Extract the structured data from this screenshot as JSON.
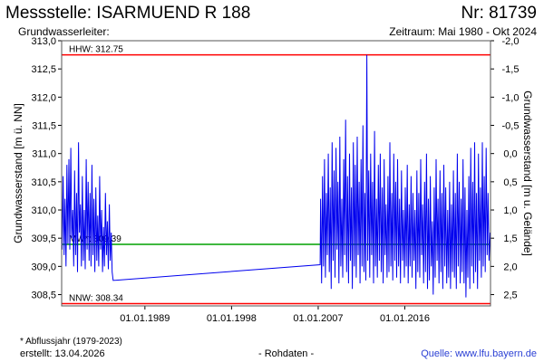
{
  "header": {
    "title": "Messstelle: ISARMUEND R 188",
    "number": "Nr: 81739",
    "aquifer": "Grundwasserleiter:",
    "period": "Zeitraum: Mai 1980 - Okt 2024"
  },
  "footer": {
    "note": "* Abflussjahr (1979-2023)",
    "created": "erstellt:  13.04.2026",
    "data_type": "- Rohdaten -",
    "source": "Quelle:  www.lfu.bayern.de"
  },
  "colors": {
    "series": "#0000ee",
    "extreme": "#ff0000",
    "mean": "#00a000",
    "frame": "#555555"
  },
  "chart_data": {
    "type": "line",
    "ylabel": "Grundwasserstand [m ü. NN]",
    "y2label": "Grundwasserstand [m u. Gelände]",
    "ylim": [
      308.3,
      313.0
    ],
    "yticks": [
      308.5,
      309.0,
      309.5,
      310.0,
      310.5,
      311.0,
      311.5,
      312.0,
      312.5,
      313.0
    ],
    "ytick_labels": [
      "308,5",
      "309,0",
      "309,5",
      "310,0",
      "310,5",
      "311,0",
      "311,5",
      "312,0",
      "312,5",
      "313,0"
    ],
    "y2ticks": [
      2.5,
      2.0,
      1.5,
      1.0,
      0.5,
      0.0,
      -0.5,
      -1.0,
      -1.5,
      -2.0
    ],
    "y2tick_labels": [
      "2,5",
      "2,0",
      "1,5",
      "1,0",
      "0,5",
      "0,0",
      "-0,5",
      "-1,0",
      "-1,5",
      "-2,0"
    ],
    "ground_level": 311.0,
    "xlim": [
      1980.35,
      2024.9
    ],
    "xticks": [
      1989.0,
      1998.0,
      2007.0,
      2016.0
    ],
    "xtick_labels": [
      "01.01.1989",
      "01.01.1998",
      "01.01.2007",
      "01.01.2016"
    ],
    "grid": false,
    "reference_lines": [
      {
        "label": "HHW: 312.75",
        "value": 312.75,
        "color": "#ff0000"
      },
      {
        "label": "MW*: 309.39",
        "value": 309.39,
        "color": "#00a000"
      },
      {
        "label": "NNW: 308.34",
        "value": 308.34,
        "color": "#ff0000"
      }
    ],
    "series": [
      {
        "values": [
          [
            1980.4,
            309.3
          ],
          [
            1980.5,
            310.6
          ],
          [
            1980.6,
            309.2
          ],
          [
            1980.7,
            310.2
          ],
          [
            1980.8,
            309.0
          ],
          [
            1980.9,
            310.8
          ],
          [
            1981.0,
            309.4
          ],
          [
            1981.1,
            310.9
          ],
          [
            1981.2,
            309.3
          ],
          [
            1981.3,
            311.1
          ],
          [
            1981.4,
            309.5
          ],
          [
            1981.5,
            310.0
          ],
          [
            1981.6,
            309.0
          ],
          [
            1981.7,
            310.7
          ],
          [
            1981.8,
            309.2
          ],
          [
            1981.9,
            310.3
          ],
          [
            1982.0,
            308.9
          ],
          [
            1982.1,
            311.2
          ],
          [
            1982.2,
            309.6
          ],
          [
            1982.3,
            310.1
          ],
          [
            1982.4,
            309.0
          ],
          [
            1982.5,
            310.6
          ],
          [
            1982.6,
            309.1
          ],
          [
            1982.7,
            310.0
          ],
          [
            1982.8,
            308.95
          ],
          [
            1982.9,
            310.9
          ],
          [
            1983.0,
            309.3
          ],
          [
            1983.1,
            310.5
          ],
          [
            1983.2,
            309.1
          ],
          [
            1983.3,
            310.3
          ],
          [
            1983.4,
            309.0
          ],
          [
            1983.5,
            310.8
          ],
          [
            1983.6,
            309.2
          ],
          [
            1983.7,
            310.2
          ],
          [
            1983.8,
            308.9
          ],
          [
            1983.9,
            310.4
          ],
          [
            1984.0,
            309.1
          ],
          [
            1984.1,
            309.9
          ],
          [
            1984.2,
            309.0
          ],
          [
            1984.3,
            310.6
          ],
          [
            1984.4,
            309.3
          ],
          [
            1984.5,
            310.0
          ],
          [
            1984.6,
            308.9
          ],
          [
            1984.7,
            309.7
          ],
          [
            1984.8,
            309.0
          ],
          [
            1984.9,
            310.3
          ],
          [
            1985.0,
            309.2
          ],
          [
            1985.1,
            309.8
          ],
          [
            1985.2,
            308.95
          ],
          [
            1985.3,
            310.1
          ],
          [
            1985.4,
            309.1
          ],
          [
            1985.5,
            309.6
          ],
          [
            1985.6,
            308.9
          ],
          [
            1985.7,
            308.75
          ],
          [
            2007.2,
            309.03
          ],
          [
            2007.25,
            310.2
          ],
          [
            2007.35,
            308.7
          ],
          [
            2007.45,
            310.6
          ],
          [
            2007.55,
            309.0
          ],
          [
            2007.65,
            310.9
          ],
          [
            2007.75,
            308.8
          ],
          [
            2007.85,
            310.3
          ],
          [
            2007.95,
            309.2
          ],
          [
            2008.05,
            311.0
          ],
          [
            2008.15,
            308.9
          ],
          [
            2008.25,
            310.4
          ],
          [
            2008.35,
            308.6
          ],
          [
            2008.45,
            311.2
          ],
          [
            2008.55,
            309.1
          ],
          [
            2008.65,
            310.7
          ],
          [
            2008.75,
            308.8
          ],
          [
            2008.85,
            311.1
          ],
          [
            2008.95,
            309.3
          ],
          [
            2009.05,
            310.5
          ],
          [
            2009.15,
            308.7
          ],
          [
            2009.25,
            311.3
          ],
          [
            2009.35,
            309.0
          ],
          [
            2009.45,
            310.2
          ],
          [
            2009.55,
            308.8
          ],
          [
            2009.65,
            310.9
          ],
          [
            2009.75,
            309.2
          ],
          [
            2009.85,
            311.6
          ],
          [
            2009.95,
            308.9
          ],
          [
            2010.05,
            310.6
          ],
          [
            2010.15,
            308.7
          ],
          [
            2010.25,
            311.0
          ],
          [
            2010.35,
            309.1
          ],
          [
            2010.45,
            310.4
          ],
          [
            2010.55,
            308.6
          ],
          [
            2010.65,
            311.2
          ],
          [
            2010.75,
            309.0
          ],
          [
            2010.85,
            310.8
          ],
          [
            2010.95,
            308.8
          ],
          [
            2011.05,
            311.3
          ],
          [
            2011.15,
            309.2
          ],
          [
            2011.25,
            310.5
          ],
          [
            2011.35,
            308.7
          ],
          [
            2011.45,
            310.9
          ],
          [
            2011.55,
            309.0
          ],
          [
            2011.65,
            311.5
          ],
          [
            2011.75,
            308.9
          ],
          [
            2011.85,
            310.3
          ],
          [
            2011.95,
            308.75
          ],
          [
            2012.05,
            312.75
          ],
          [
            2012.15,
            309.1
          ],
          [
            2012.25,
            310.7
          ],
          [
            2012.35,
            308.8
          ],
          [
            2012.45,
            311.0
          ],
          [
            2012.55,
            309.2
          ],
          [
            2012.65,
            310.5
          ],
          [
            2012.75,
            308.7
          ],
          [
            2012.85,
            311.4
          ],
          [
            2012.95,
            309.0
          ],
          [
            2013.05,
            310.2
          ],
          [
            2013.15,
            308.8
          ],
          [
            2013.25,
            310.8
          ],
          [
            2013.35,
            309.1
          ],
          [
            2013.45,
            311.0
          ],
          [
            2013.55,
            308.9
          ],
          [
            2013.65,
            310.4
          ],
          [
            2013.75,
            308.7
          ],
          [
            2013.85,
            310.9
          ],
          [
            2013.95,
            309.2
          ],
          [
            2014.05,
            310.1
          ],
          [
            2014.15,
            308.8
          ],
          [
            2014.25,
            310.6
          ],
          [
            2014.35,
            308.9
          ],
          [
            2014.45,
            311.2
          ],
          [
            2014.55,
            309.0
          ],
          [
            2014.65,
            310.3
          ],
          [
            2014.75,
            308.75
          ],
          [
            2014.85,
            311.0
          ],
          [
            2014.95,
            309.1
          ],
          [
            2015.05,
            310.5
          ],
          [
            2015.15,
            308.8
          ],
          [
            2015.25,
            310.9
          ],
          [
            2015.35,
            309.0
          ],
          [
            2015.45,
            310.2
          ],
          [
            2015.55,
            308.7
          ],
          [
            2015.65,
            310.7
          ],
          [
            2015.75,
            309.1
          ],
          [
            2015.85,
            310.0
          ],
          [
            2015.95,
            308.8
          ],
          [
            2016.05,
            310.4
          ],
          [
            2016.15,
            309.0
          ],
          [
            2016.25,
            310.8
          ],
          [
            2016.35,
            308.7
          ],
          [
            2016.45,
            310.1
          ],
          [
            2016.55,
            309.0
          ],
          [
            2016.65,
            310.6
          ],
          [
            2016.75,
            308.8
          ],
          [
            2016.85,
            310.3
          ],
          [
            2016.95,
            309.1
          ],
          [
            2017.05,
            310.0
          ],
          [
            2017.15,
            308.6
          ],
          [
            2017.25,
            310.7
          ],
          [
            2017.35,
            308.9
          ],
          [
            2017.45,
            310.3
          ],
          [
            2017.55,
            308.8
          ],
          [
            2017.65,
            310.9
          ],
          [
            2017.75,
            309.2
          ],
          [
            2017.85,
            310.1
          ],
          [
            2017.95,
            308.7
          ],
          [
            2018.05,
            310.5
          ],
          [
            2018.15,
            308.9
          ],
          [
            2018.25,
            311.0
          ],
          [
            2018.35,
            308.6
          ],
          [
            2018.45,
            310.2
          ],
          [
            2018.55,
            308.75
          ],
          [
            2018.65,
            310.6
          ],
          [
            2018.75,
            309.0
          ],
          [
            2018.85,
            309.8
          ],
          [
            2018.95,
            308.5
          ],
          [
            2019.05,
            310.4
          ],
          [
            2019.15,
            308.8
          ],
          [
            2019.25,
            310.9
          ],
          [
            2019.35,
            309.1
          ],
          [
            2019.45,
            310.2
          ],
          [
            2019.55,
            308.7
          ],
          [
            2019.65,
            310.7
          ],
          [
            2019.75,
            308.9
          ],
          [
            2019.85,
            310.3
          ],
          [
            2019.95,
            308.6
          ],
          [
            2020.05,
            310.8
          ],
          [
            2020.15,
            309.0
          ],
          [
            2020.25,
            310.4
          ],
          [
            2020.35,
            308.7
          ],
          [
            2020.45,
            310.0
          ],
          [
            2020.55,
            308.8
          ],
          [
            2020.65,
            310.5
          ],
          [
            2020.75,
            308.6
          ],
          [
            2020.85,
            310.1
          ],
          [
            2020.95,
            308.9
          ],
          [
            2021.05,
            310.7
          ],
          [
            2021.15,
            308.8
          ],
          [
            2021.25,
            310.3
          ],
          [
            2021.35,
            308.6
          ],
          [
            2021.45,
            311.0
          ],
          [
            2021.55,
            309.0
          ],
          [
            2021.65,
            310.5
          ],
          [
            2021.75,
            308.7
          ],
          [
            2021.85,
            310.2
          ],
          [
            2021.95,
            308.9
          ],
          [
            2022.05,
            310.9
          ],
          [
            2022.15,
            308.7
          ],
          [
            2022.25,
            310.4
          ],
          [
            2022.35,
            308.45
          ],
          [
            2022.45,
            310.0
          ],
          [
            2022.55,
            308.8
          ],
          [
            2022.65,
            310.6
          ],
          [
            2022.75,
            308.6
          ],
          [
            2022.85,
            311.1
          ],
          [
            2022.95,
            309.0
          ],
          [
            2023.05,
            310.5
          ],
          [
            2023.15,
            308.7
          ],
          [
            2023.25,
            311.2
          ],
          [
            2023.35,
            308.9
          ],
          [
            2023.45,
            310.3
          ],
          [
            2023.55,
            308.6
          ],
          [
            2023.65,
            311.0
          ],
          [
            2023.75,
            309.1
          ],
          [
            2023.85,
            310.4
          ],
          [
            2023.95,
            308.8
          ],
          [
            2024.05,
            311.2
          ],
          [
            2024.15,
            309.0
          ],
          [
            2024.25,
            310.6
          ],
          [
            2024.35,
            308.9
          ],
          [
            2024.45,
            311.1
          ],
          [
            2024.55,
            309.2
          ],
          [
            2024.65,
            310.3
          ],
          [
            2024.75,
            309.1
          ],
          [
            2024.85,
            309.6
          ]
        ]
      }
    ]
  }
}
